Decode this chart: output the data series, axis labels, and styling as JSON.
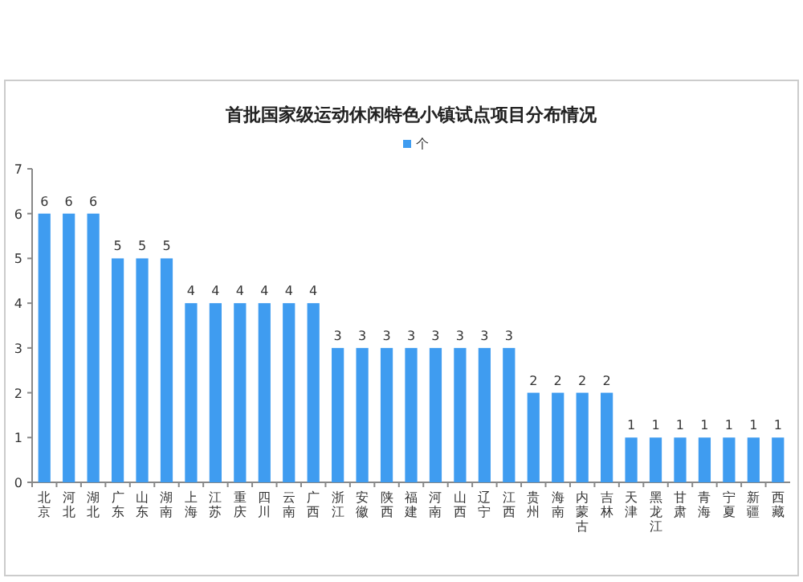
{
  "chart_data": {
    "type": "bar",
    "title": "首批国家级运动休闲特色小镇试点项目分布情况",
    "categories": [
      "北京",
      "河北",
      "湖北",
      "广东",
      "山东",
      "湖南",
      "上海",
      "江苏",
      "重庆",
      "四川",
      "云南",
      "广西",
      "浙江",
      "安徽",
      "陕西",
      "福建",
      "河南",
      "山西",
      "辽宁",
      "江西",
      "贵州",
      "海南",
      "内蒙古",
      "吉林",
      "天津",
      "黑龙江",
      "甘肃",
      "青海",
      "宁夏",
      "新疆",
      "西藏"
    ],
    "series": [
      {
        "name": "个",
        "color": "#3f9cf0",
        "values": [
          6,
          6,
          6,
          5,
          5,
          5,
          4,
          4,
          4,
          4,
          4,
          4,
          3,
          3,
          3,
          3,
          3,
          3,
          3,
          3,
          2,
          2,
          2,
          2,
          1,
          1,
          1,
          1,
          1,
          1,
          1
        ]
      }
    ],
    "ylim": [
      0,
      7
    ],
    "yticks": [
      0,
      1,
      2,
      3,
      4,
      5,
      6,
      7
    ],
    "data_labels": true,
    "legend": "top",
    "grid": false
  }
}
